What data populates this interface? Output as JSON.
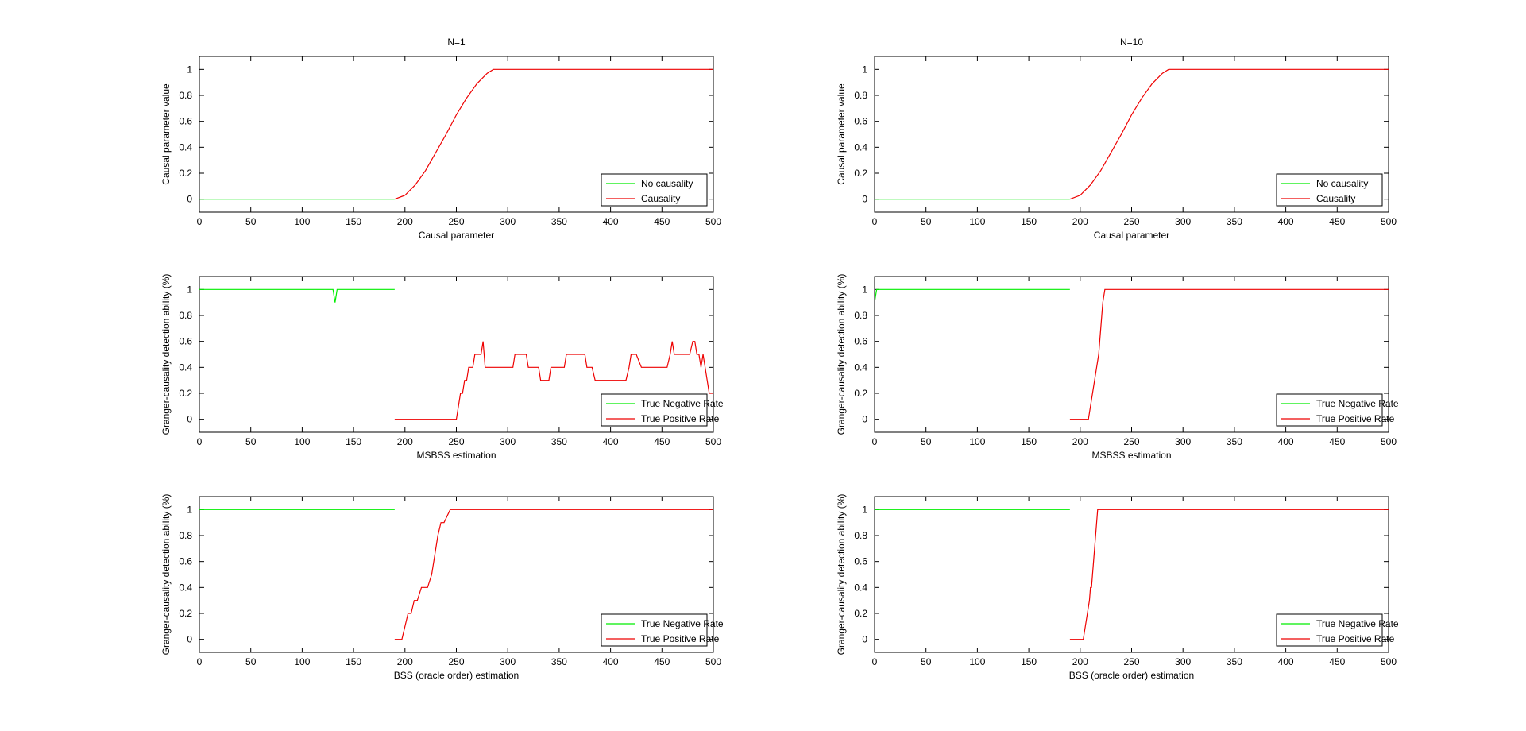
{
  "colors": {
    "green": "#00ee00",
    "red": "#ee0000"
  },
  "chart_data": [
    {
      "id": "left-top",
      "type": "line",
      "title": "N=1",
      "xlabel": "Causal parameter",
      "ylabel": "Causal parameter value",
      "xlim": [
        0,
        500
      ],
      "ylim": [
        -0.1,
        1.1
      ],
      "xticks": [
        0,
        50,
        100,
        150,
        200,
        250,
        300,
        350,
        400,
        450,
        500
      ],
      "yticks": [
        0,
        0.2,
        0.4,
        0.6,
        0.8,
        1
      ],
      "yticklabels": [
        "0",
        "0.2",
        "0.4",
        "0.6",
        "0.8",
        "1"
      ],
      "legend": [
        "No causality",
        "Causality"
      ],
      "legend_position": "bottom-right",
      "series": [
        {
          "name": "No causality",
          "color": "green",
          "x": [
            0,
            190
          ],
          "y": [
            0,
            0
          ]
        },
        {
          "name": "Causality",
          "color": "red",
          "x": [
            190,
            200,
            210,
            220,
            230,
            240,
            250,
            260,
            270,
            280,
            286,
            300,
            400,
            500
          ],
          "y": [
            0,
            0.03,
            0.11,
            0.22,
            0.36,
            0.5,
            0.65,
            0.78,
            0.89,
            0.97,
            1,
            1,
            1,
            1
          ]
        }
      ]
    },
    {
      "id": "left-mid",
      "type": "line",
      "title": "",
      "xlabel": "MSBSS estimation",
      "ylabel": "Granger-causality detection ability (%)",
      "xlim": [
        0,
        500
      ],
      "ylim": [
        -0.1,
        1.1
      ],
      "xticks": [
        0,
        50,
        100,
        150,
        200,
        250,
        300,
        350,
        400,
        450,
        500
      ],
      "yticks": [
        0,
        0.2,
        0.4,
        0.6,
        0.8,
        1
      ],
      "yticklabels": [
        "0",
        "0.2",
        "0.4",
        "0.6",
        "0.8",
        "1"
      ],
      "legend": [
        "True Negative Rate",
        "True Positive Rate"
      ],
      "legend_position": "bottom-right",
      "series": [
        {
          "name": "True Negative Rate",
          "color": "green",
          "x": [
            0,
            130,
            131,
            132,
            133,
            134,
            190
          ],
          "y": [
            1,
            1,
            0.95,
            0.9,
            0.95,
            1,
            1
          ]
        },
        {
          "name": "True Positive Rate",
          "color": "red",
          "x": [
            190,
            250,
            252,
            254,
            256,
            258,
            260,
            262,
            264,
            266,
            268,
            270,
            272,
            274,
            276,
            277,
            278,
            290,
            305,
            307,
            318,
            320,
            322,
            330,
            332,
            340,
            342,
            355,
            357,
            368,
            370,
            375,
            377,
            382,
            385,
            390,
            395,
            400,
            405,
            415,
            418,
            420,
            425,
            430,
            432,
            435,
            440,
            445,
            450,
            455,
            458,
            460,
            462,
            465,
            470,
            475,
            477,
            480,
            482,
            484,
            486,
            488,
            490,
            492,
            494,
            496,
            498,
            500
          ],
          "y": [
            0,
            0,
            0.1,
            0.2,
            0.2,
            0.3,
            0.3,
            0.4,
            0.4,
            0.4,
            0.5,
            0.5,
            0.5,
            0.5,
            0.6,
            0.5,
            0.4,
            0.4,
            0.4,
            0.5,
            0.5,
            0.4,
            0.4,
            0.4,
            0.3,
            0.3,
            0.4,
            0.4,
            0.5,
            0.5,
            0.5,
            0.5,
            0.4,
            0.4,
            0.3,
            0.3,
            0.3,
            0.3,
            0.3,
            0.3,
            0.4,
            0.5,
            0.5,
            0.4,
            0.4,
            0.4,
            0.4,
            0.4,
            0.4,
            0.4,
            0.5,
            0.6,
            0.5,
            0.5,
            0.5,
            0.5,
            0.5,
            0.6,
            0.6,
            0.5,
            0.5,
            0.4,
            0.5,
            0.4,
            0.3,
            0.2,
            0.2,
            0.2
          ]
        }
      ]
    },
    {
      "id": "left-bot",
      "type": "line",
      "title": "",
      "xlabel": "BSS (oracle order) estimation",
      "ylabel": "Granger-causality detection ability (%)",
      "xlim": [
        0,
        500
      ],
      "ylim": [
        -0.1,
        1.1
      ],
      "xticks": [
        0,
        50,
        100,
        150,
        200,
        250,
        300,
        350,
        400,
        450,
        500
      ],
      "yticks": [
        0,
        0.2,
        0.4,
        0.6,
        0.8,
        1
      ],
      "yticklabels": [
        "0",
        "0.2",
        "0.4",
        "0.6",
        "0.8",
        "1"
      ],
      "legend": [
        "True Negative Rate",
        "True Positive Rate"
      ],
      "legend_position": "bottom-right",
      "series": [
        {
          "name": "True Negative Rate",
          "color": "green",
          "x": [
            0,
            190
          ],
          "y": [
            1,
            1
          ]
        },
        {
          "name": "True Positive Rate",
          "color": "red",
          "x": [
            190,
            197,
            200,
            203,
            206,
            209,
            212,
            216,
            222,
            226,
            228,
            232,
            235,
            238,
            244,
            250,
            300,
            400,
            500
          ],
          "y": [
            0,
            0,
            0.1,
            0.2,
            0.2,
            0.3,
            0.3,
            0.4,
            0.4,
            0.5,
            0.6,
            0.8,
            0.9,
            0.9,
            1,
            1,
            1,
            1,
            1
          ]
        }
      ]
    },
    {
      "id": "right-top",
      "type": "line",
      "title": "N=10",
      "xlabel": "Causal parameter",
      "ylabel": "Causal parameter value",
      "xlim": [
        0,
        500
      ],
      "ylim": [
        -0.1,
        1.1
      ],
      "xticks": [
        0,
        50,
        100,
        150,
        200,
        250,
        300,
        350,
        400,
        450,
        500
      ],
      "yticks": [
        0,
        0.2,
        0.4,
        0.6,
        0.8,
        1
      ],
      "yticklabels": [
        "0",
        "0.2",
        "0.4",
        "0.6",
        "0.8",
        "1"
      ],
      "legend": [
        "No causality",
        "Causality"
      ],
      "legend_position": "bottom-right",
      "series": [
        {
          "name": "No causality",
          "color": "green",
          "x": [
            0,
            190
          ],
          "y": [
            0,
            0
          ]
        },
        {
          "name": "Causality",
          "color": "red",
          "x": [
            190,
            200,
            210,
            220,
            230,
            240,
            250,
            260,
            270,
            280,
            286,
            300,
            400,
            500
          ],
          "y": [
            0,
            0.03,
            0.11,
            0.22,
            0.36,
            0.5,
            0.65,
            0.78,
            0.89,
            0.97,
            1,
            1,
            1,
            1
          ]
        }
      ]
    },
    {
      "id": "right-mid",
      "type": "line",
      "title": "",
      "xlabel": "MSBSS estimation",
      "ylabel": "Granger-causality detection ability (%)",
      "xlim": [
        0,
        500
      ],
      "ylim": [
        -0.1,
        1.1
      ],
      "xticks": [
        0,
        50,
        100,
        150,
        200,
        250,
        300,
        350,
        400,
        450,
        500
      ],
      "yticks": [
        0,
        0.2,
        0.4,
        0.6,
        0.8,
        1
      ],
      "yticklabels": [
        "0",
        "0.2",
        "0.4",
        "0.6",
        "0.8",
        "1"
      ],
      "legend": [
        "True Negative Rate",
        "True Positive Rate"
      ],
      "legend_position": "bottom-right",
      "series": [
        {
          "name": "True Negative Rate",
          "color": "green",
          "x": [
            0,
            1,
            2,
            4,
            190
          ],
          "y": [
            0.9,
            0.95,
            1,
            1,
            1
          ]
        },
        {
          "name": "True Positive Rate",
          "color": "red",
          "x": [
            190,
            208,
            210,
            212,
            214,
            216,
            218,
            219,
            220,
            221,
            222,
            224,
            230,
            300,
            400,
            500
          ],
          "y": [
            0,
            0,
            0.1,
            0.2,
            0.3,
            0.4,
            0.5,
            0.6,
            0.7,
            0.8,
            0.9,
            1,
            1,
            1,
            1,
            1
          ]
        }
      ]
    },
    {
      "id": "right-bot",
      "type": "line",
      "title": "",
      "xlabel": "BSS (oracle order) estimation",
      "ylabel": "Granger-causality detection ability (%)",
      "xlim": [
        0,
        500
      ],
      "ylim": [
        -0.1,
        1.1
      ],
      "xticks": [
        0,
        50,
        100,
        150,
        200,
        250,
        300,
        350,
        400,
        450,
        500
      ],
      "yticks": [
        0,
        0.2,
        0.4,
        0.6,
        0.8,
        1
      ],
      "yticklabels": [
        "0",
        "0.2",
        "0.4",
        "0.6",
        "0.8",
        "1"
      ],
      "legend": [
        "True Negative Rate",
        "True Positive Rate"
      ],
      "legend_position": "bottom-right",
      "series": [
        {
          "name": "True Negative Rate",
          "color": "green",
          "x": [
            0,
            190
          ],
          "y": [
            1,
            1
          ]
        },
        {
          "name": "True Positive Rate",
          "color": "red",
          "x": [
            190,
            203,
            205,
            207,
            209,
            210,
            211,
            212,
            213,
            214,
            215,
            216,
            217,
            218,
            230,
            300,
            400,
            500
          ],
          "y": [
            0,
            0,
            0.1,
            0.2,
            0.3,
            0.4,
            0.4,
            0.5,
            0.6,
            0.7,
            0.8,
            0.9,
            1,
            1,
            1,
            1,
            1,
            1
          ]
        }
      ]
    }
  ]
}
